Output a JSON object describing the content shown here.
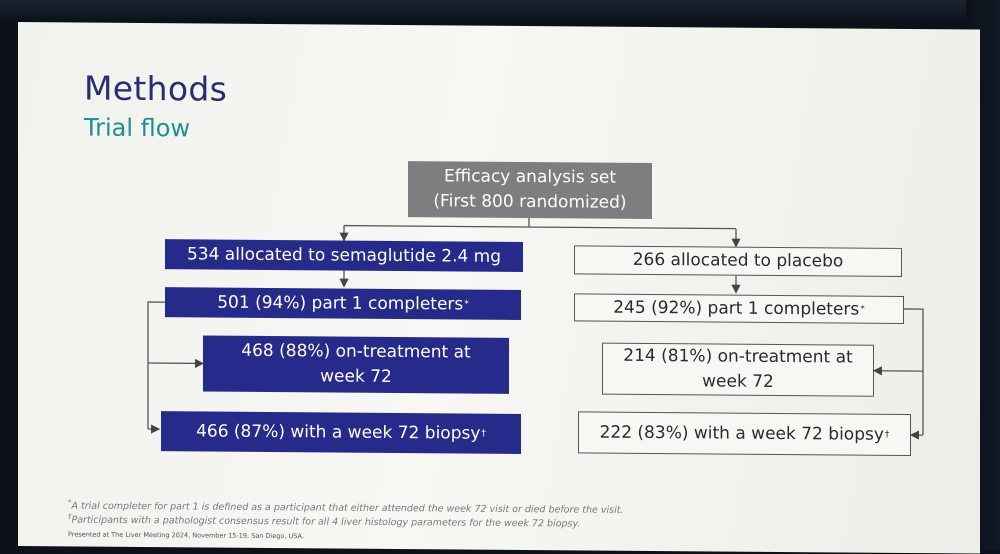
{
  "slide": {
    "title": "Methods",
    "subtitle": "Trial flow"
  },
  "flow": {
    "efficacy_line1": "Efficacy analysis set",
    "efficacy_line2": "(First 800 randomized)",
    "sema": {
      "allocated": "534 allocated to semaglutide 2.4 mg",
      "completers": "501 (94%) part 1 completers",
      "completers_mark": "*",
      "on_treatment_line1": "468 (88%) on-treatment at",
      "on_treatment_line2": "week 72",
      "biopsy": "466 (87%) with a week 72 biopsy",
      "biopsy_mark": "†"
    },
    "placebo": {
      "allocated": "266 allocated to placebo",
      "completers": "245 (92%) part 1 completers",
      "completers_mark": "*",
      "on_treatment_line1": "214 (81%) on-treatment at",
      "on_treatment_line2": "week 72",
      "biopsy": "222 (83%) with a week 72 biopsy",
      "biopsy_mark": "†"
    }
  },
  "footnotes": {
    "note1_mark": "*",
    "note1": "A trial completer for part 1 is defined as a participant that either attended the week 72 visit or died before the visit.",
    "note2_mark": "†",
    "note2": "Participants with a pathologist consensus result for all 4 liver histology parameters for the week 72 biopsy.",
    "credit": "Presented at The Liver Meeting 2024, November 15-19, San Diego, USA."
  },
  "colors": {
    "navy": "#262a8a",
    "title": "#2a2e6e",
    "subtitle": "#1d8f8f",
    "grey_box": "#7d7e80"
  }
}
